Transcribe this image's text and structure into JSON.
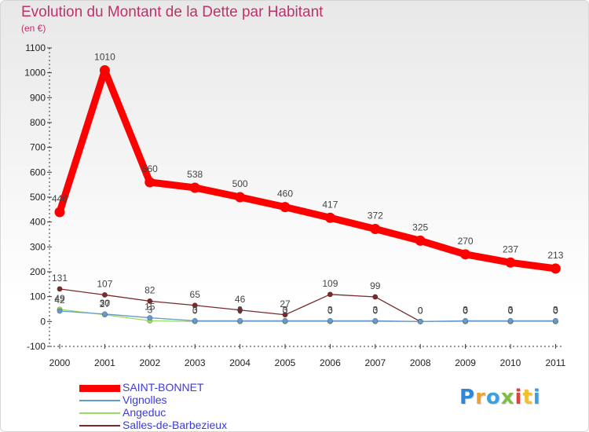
{
  "chart_data": {
    "type": "line",
    "title": "Evolution du Montant de la Dette par Habitant",
    "subtitle": "(en €)",
    "categories": [
      "2000",
      "2001",
      "2002",
      "2003",
      "2004",
      "2005",
      "2006",
      "2007",
      "2008",
      "2009",
      "2010",
      "2011"
    ],
    "ylim": [
      -100,
      1100
    ],
    "yticks": [
      -100,
      0,
      100,
      200,
      300,
      400,
      500,
      600,
      700,
      800,
      900,
      1000,
      1100
    ],
    "series": [
      {
        "name": "SAINT-BONNET",
        "color": "#ff0000",
        "values": [
          440,
          1010,
          560,
          538,
          500,
          460,
          417,
          372,
          325,
          270,
          237,
          213
        ]
      },
      {
        "name": "Vignolles",
        "color": "#6699cc",
        "values": [
          42,
          30,
          15,
          3,
          3,
          3,
          3,
          3,
          0,
          3,
          3,
          3
        ]
      },
      {
        "name": "Angeduc",
        "color": "#99dd66",
        "values": [
          49,
          27,
          3,
          0,
          0,
          0,
          0,
          0,
          0,
          0,
          0,
          0
        ]
      },
      {
        "name": "Salles-de-Barbezieux",
        "color": "#7a2a2a",
        "values": [
          131,
          107,
          82,
          65,
          46,
          27,
          109,
          99,
          0,
          0,
          0,
          0
        ]
      }
    ]
  },
  "branding": {
    "logo_letters": [
      "P",
      "r",
      "o",
      "x",
      "i",
      "t",
      "i"
    ],
    "logo_colors": [
      "#2e86d6",
      "#f0a030",
      "#3aa0e0",
      "#7bc043",
      "#e04040",
      "#f0c030",
      "#3aa0e0"
    ]
  }
}
